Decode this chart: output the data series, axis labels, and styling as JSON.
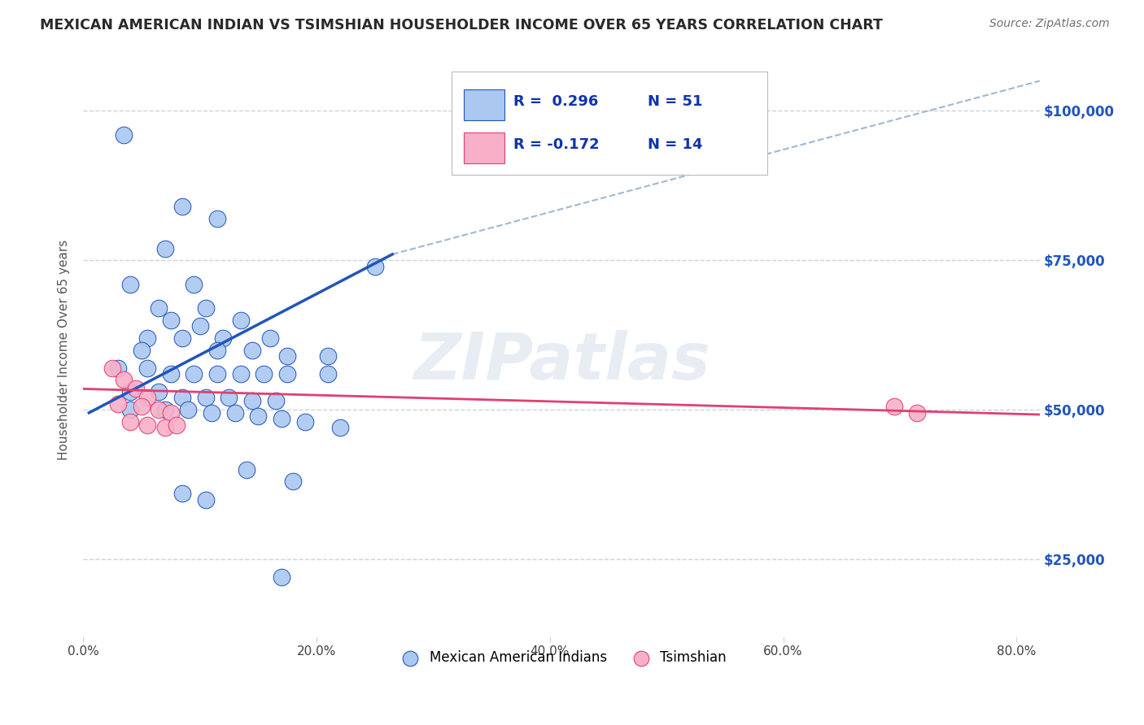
{
  "title": "MEXICAN AMERICAN INDIAN VS TSIMSHIAN HOUSEHOLDER INCOME OVER 65 YEARS CORRELATION CHART",
  "source": "Source: ZipAtlas.com",
  "ylabel": "Householder Income Over 65 years",
  "legend_labels": [
    "Mexican American Indians",
    "Tsimshian"
  ],
  "r_blue": 0.296,
  "n_blue": 51,
  "r_pink": -0.172,
  "n_pink": 14,
  "xlim": [
    0.0,
    0.82
  ],
  "ylim": [
    12000,
    108000
  ],
  "yticks": [
    25000,
    50000,
    75000,
    100000
  ],
  "ytick_labels": [
    "$25,000",
    "$50,000",
    "$75,000",
    "$100,000"
  ],
  "xtick_labels": [
    "0.0%",
    "",
    "",
    "",
    "",
    "20.0%",
    "",
    "",
    "",
    "",
    "40.0%",
    "",
    "",
    "",
    "",
    "60.0%",
    "",
    "",
    "",
    "",
    "80.0%"
  ],
  "xticks": [
    0.0,
    0.04,
    0.08,
    0.12,
    0.16,
    0.2,
    0.24,
    0.28,
    0.32,
    0.36,
    0.4,
    0.44,
    0.48,
    0.52,
    0.56,
    0.6,
    0.64,
    0.68,
    0.72,
    0.76,
    0.8
  ],
  "watermark": "ZIPatlas",
  "blue_scatter": [
    [
      0.035,
      96000
    ],
    [
      0.085,
      84000
    ],
    [
      0.115,
      82000
    ],
    [
      0.07,
      77000
    ],
    [
      0.04,
      71000
    ],
    [
      0.095,
      71000
    ],
    [
      0.065,
      67000
    ],
    [
      0.105,
      67000
    ],
    [
      0.075,
      65000
    ],
    [
      0.135,
      65000
    ],
    [
      0.1,
      64000
    ],
    [
      0.055,
      62000
    ],
    [
      0.085,
      62000
    ],
    [
      0.12,
      62000
    ],
    [
      0.16,
      62000
    ],
    [
      0.05,
      60000
    ],
    [
      0.115,
      60000
    ],
    [
      0.145,
      60000
    ],
    [
      0.175,
      59000
    ],
    [
      0.21,
      59000
    ],
    [
      0.03,
      57000
    ],
    [
      0.055,
      57000
    ],
    [
      0.075,
      56000
    ],
    [
      0.095,
      56000
    ],
    [
      0.115,
      56000
    ],
    [
      0.135,
      56000
    ],
    [
      0.155,
      56000
    ],
    [
      0.175,
      56000
    ],
    [
      0.21,
      56000
    ],
    [
      0.25,
      74000
    ],
    [
      0.04,
      53000
    ],
    [
      0.065,
      53000
    ],
    [
      0.085,
      52000
    ],
    [
      0.105,
      52000
    ],
    [
      0.125,
      52000
    ],
    [
      0.145,
      51500
    ],
    [
      0.165,
      51500
    ],
    [
      0.04,
      50000
    ],
    [
      0.07,
      50000
    ],
    [
      0.09,
      50000
    ],
    [
      0.11,
      49500
    ],
    [
      0.13,
      49500
    ],
    [
      0.15,
      49000
    ],
    [
      0.17,
      48500
    ],
    [
      0.19,
      48000
    ],
    [
      0.22,
      47000
    ],
    [
      0.14,
      40000
    ],
    [
      0.18,
      38000
    ],
    [
      0.085,
      36000
    ],
    [
      0.105,
      35000
    ],
    [
      0.17,
      22000
    ]
  ],
  "pink_scatter": [
    [
      0.025,
      57000
    ],
    [
      0.035,
      55000
    ],
    [
      0.045,
      53500
    ],
    [
      0.055,
      52000
    ],
    [
      0.03,
      51000
    ],
    [
      0.05,
      50500
    ],
    [
      0.065,
      50000
    ],
    [
      0.075,
      49500
    ],
    [
      0.04,
      48000
    ],
    [
      0.055,
      47500
    ],
    [
      0.07,
      47000
    ],
    [
      0.08,
      47500
    ],
    [
      0.695,
      50500
    ],
    [
      0.715,
      49500
    ]
  ],
  "blue_color": "#aac8f0",
  "pink_color": "#f8b0c8",
  "blue_line_color": "#2255bb",
  "pink_line_color": "#e04070",
  "dashed_line_color": "#a0b8d0",
  "title_color": "#2a2a2a",
  "axis_label_color": "#555555",
  "tick_label_color_right": "#2255bb",
  "grid_color": "#c8d4e0",
  "background_color": "#ffffff",
  "blue_line_x": [
    0.005,
    0.265
  ],
  "blue_line_y": [
    49500,
    76000
  ],
  "pink_line_x": [
    0.0,
    0.82
  ],
  "pink_line_y": [
    53500,
    49200
  ],
  "dashed_line_x": [
    0.265,
    0.82
  ],
  "dashed_line_y": [
    76000,
    105000
  ]
}
